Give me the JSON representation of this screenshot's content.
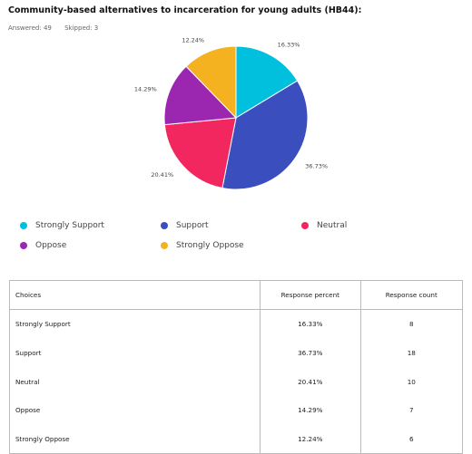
{
  "header": {
    "title": "Community-based alternatives to incarceration for young adults (HB44):",
    "answered": "Answered: 49",
    "skipped": "Skipped: 3"
  },
  "chart_data": {
    "type": "pie",
    "categories": [
      "Strongly Support",
      "Support",
      "Neutral",
      "Oppose",
      "Strongly Oppose"
    ],
    "values": [
      16.33,
      36.73,
      20.41,
      14.29,
      12.24
    ],
    "labels": [
      "16.33%",
      "36.73%",
      "20.41%",
      "14.29%",
      "12.24%"
    ],
    "colors": [
      "#00c0de",
      "#3a4ebd",
      "#f2275f",
      "#9b27b0",
      "#f4b120"
    ],
    "legend_placement": "bottom"
  },
  "table": {
    "headers": [
      "Choices",
      "Response percent",
      "Response count"
    ],
    "rows": [
      [
        "Strongly Support",
        "16.33%",
        "8"
      ],
      [
        "Support",
        "36.73%",
        "18"
      ],
      [
        "Neutral",
        "20.41%",
        "10"
      ],
      [
        "Oppose",
        "14.29%",
        "7"
      ],
      [
        "Strongly Oppose",
        "12.24%",
        "6"
      ]
    ]
  }
}
